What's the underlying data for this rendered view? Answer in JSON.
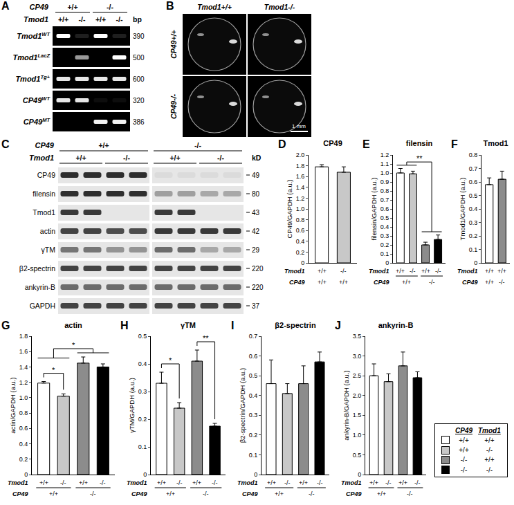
{
  "gel": {
    "letter": "A",
    "column_rows": [
      {
        "label": "CP49",
        "values": [
          "+/+",
          "-/-"
        ],
        "spans": [
          [
            0,
            1
          ],
          [
            2,
            3
          ]
        ]
      },
      {
        "label": "Tmod1",
        "values": [
          "+/+",
          "-/-",
          "+/+",
          "-/-"
        ]
      }
    ],
    "size_header": "bp",
    "rows": [
      {
        "gene": "Tmod1",
        "sup": "WT",
        "bp": 390,
        "bands": [
          1,
          0.12,
          1,
          0.12
        ]
      },
      {
        "gene": "Tmod1",
        "sup": "LacZ",
        "bp": 500,
        "bands": [
          0,
          0.6,
          0,
          1
        ]
      },
      {
        "gene": "Tmod1",
        "sup": "Tg+",
        "bp": 600,
        "bands": [
          0.9,
          0.9,
          0.9,
          0.9
        ]
      },
      {
        "gene": "CP49",
        "sup": "WT",
        "bp": 320,
        "bands": [
          0.9,
          0.9,
          0.05,
          0.05
        ]
      },
      {
        "gene": "CP49",
        "sup": "MT",
        "bp": 386,
        "bands": [
          0,
          0,
          0.95,
          0.95
        ]
      }
    ]
  },
  "photos": {
    "letter": "B",
    "columns": [
      "Tmod1+/+",
      "Tmod1-/-"
    ],
    "rows": [
      "CP49+/+",
      "CP49-/-"
    ],
    "scale_bar": "1 mm"
  },
  "blot": {
    "letter": "C",
    "column_rows": [
      {
        "label": "CP49",
        "values": [
          "+/+",
          "-/-"
        ],
        "spans": [
          [
            0,
            3
          ],
          [
            4,
            7
          ]
        ]
      },
      {
        "label": "Tmod1",
        "values": [
          "+/+",
          "-/-",
          "+/+",
          "-/-"
        ],
        "spans": [
          [
            0,
            1
          ],
          [
            2,
            3
          ],
          [
            4,
            5
          ],
          [
            6,
            7
          ]
        ]
      }
    ],
    "size_header": "kD",
    "rows": [
      {
        "label": "CP49",
        "kd": 49,
        "bands": [
          0.9,
          0.9,
          0.9,
          0.9,
          0.05,
          0.05,
          0.05,
          0.05
        ]
      },
      {
        "label": "filensin",
        "kd": 80,
        "bands": [
          0.9,
          0.9,
          0.9,
          0.9,
          0.35,
          0.35,
          0.3,
          0.3
        ]
      },
      {
        "label": "Tmod1",
        "kd": 43,
        "bands": [
          0.85,
          0.85,
          0,
          0,
          0.85,
          0.85,
          0,
          0
        ]
      },
      {
        "label": "actin",
        "kd": 42,
        "bands": [
          0.8,
          0.8,
          0.75,
          0.75,
          0.85,
          0.85,
          0.85,
          0.85
        ]
      },
      {
        "label": "γTM",
        "kd": 29,
        "bands": [
          0.55,
          0.55,
          0.4,
          0.4,
          0.6,
          0.6,
          0.3,
          0.3
        ]
      },
      {
        "label": "β2-spectrin",
        "kd": 220,
        "bands": [
          0.8,
          0.8,
          0.8,
          0.8,
          0.8,
          0.8,
          0.8,
          0.8
        ]
      },
      {
        "label": "ankyrin-B",
        "kd": 220,
        "bands": [
          0.6,
          0.6,
          0.6,
          0.6,
          0.6,
          0.6,
          0.6,
          0.6
        ]
      },
      {
        "label": "GAPDH",
        "kd": 37,
        "bands": [
          0.8,
          0.8,
          0.8,
          0.8,
          0.8,
          0.8,
          0.8,
          0.8
        ]
      }
    ]
  },
  "chart_data": [
    {
      "panel": "D",
      "type": "bar",
      "title": "CP49",
      "y_label": "CP49/GAPDH (a.u.)",
      "grid": false,
      "values": [
        1.78,
        1.68
      ],
      "errors": [
        0.04,
        0.1
      ],
      "colors": [
        "#ffffff",
        "#c8c8c8"
      ],
      "x_rows": [
        {
          "label": "Tmod1",
          "values": [
            "+/+",
            "-/-"
          ]
        },
        {
          "label": "CP49",
          "values": [
            "+/+",
            "+/+"
          ]
        }
      ],
      "ylim": [
        0,
        2
      ],
      "yticks": [
        0,
        0.2,
        0.4,
        0.6,
        0.8,
        {
          "value": 1,
          "label": "1.0"
        },
        1.2,
        1.4,
        1.6,
        1.8,
        {
          "value": 2,
          "label": "2.0"
        }
      ],
      "significance": []
    },
    {
      "panel": "E",
      "type": "bar",
      "title": "filensin",
      "y_label": "filensin/GAPDH (a.u.)",
      "grid": false,
      "values": [
        1.0,
        0.99,
        0.2,
        0.26
      ],
      "errors": [
        0.05,
        0.03,
        0.03,
        0.05
      ],
      "colors": [
        "#ffffff",
        "#c8c8c8",
        "#8c8c8c",
        "#000000"
      ],
      "x_rows": [
        {
          "label": "Tmod1",
          "values": [
            "+/+",
            "-/-",
            "+/+",
            "-/-"
          ]
        },
        {
          "label": "CP49",
          "values": [
            "+/+",
            "-/-"
          ],
          "spans": [
            [
              0,
              1
            ],
            [
              2,
              3
            ]
          ]
        }
      ],
      "ylim": [
        0,
        1.2
      ],
      "yticks": [
        0,
        0.1,
        0.2,
        0.3,
        0.4,
        0.5,
        0.6,
        0.7,
        0.8,
        0.9,
        {
          "value": 1,
          "label": "1.0"
        },
        1.1,
        1.2
      ],
      "significance": [
        {
          "a": [
            0,
            1
          ],
          "b": [
            2,
            3
          ],
          "label": "**"
        }
      ]
    },
    {
      "panel": "F",
      "type": "bar",
      "title": "Tmod1",
      "y_label": "Tmod1/GAPDH (a.u.)",
      "grid": false,
      "values": [
        0.58,
        0.62
      ],
      "errors": [
        0.05,
        0.06
      ],
      "colors": [
        "#ffffff",
        "#8c8c8c"
      ],
      "x_rows": [
        {
          "label": "Tmod1",
          "values": [
            "+/+",
            "+/+"
          ]
        },
        {
          "label": "CP49",
          "values": [
            "+/+",
            "-/-"
          ]
        }
      ],
      "ylim": [
        0,
        0.8
      ],
      "yticks": [
        0,
        0.1,
        0.2,
        0.3,
        0.4,
        0.5,
        0.6,
        0.7,
        0.8
      ],
      "significance": []
    },
    {
      "panel": "G",
      "type": "bar",
      "title": "actin",
      "y_label": "actin/GAPDH (a.u.)",
      "grid": false,
      "values": [
        1.19,
        1.02,
        1.45,
        1.4
      ],
      "errors": [
        0.02,
        0.03,
        0.08,
        0.04
      ],
      "colors": [
        "#ffffff",
        "#c8c8c8",
        "#8c8c8c",
        "#000000"
      ],
      "x_rows": [
        {
          "label": "Tmod1",
          "values": [
            "+/+",
            "-/-",
            "+/+",
            "-/-"
          ]
        },
        {
          "label": "CP49",
          "values": [
            "+/+",
            "-/-"
          ],
          "spans": [
            [
              0,
              1
            ],
            [
              2,
              3
            ]
          ]
        }
      ],
      "ylim": [
        0,
        1.8
      ],
      "yticks": [
        0,
        0.2,
        0.4,
        0.6,
        0.8,
        {
          "value": 1,
          "label": "1.0"
        },
        1.2,
        1.4,
        1.6,
        1.8
      ],
      "significance": [
        {
          "a": [
            0
          ],
          "b": [
            1
          ],
          "label": "*"
        },
        {
          "a": [
            0,
            1
          ],
          "b": [
            2,
            3
          ],
          "label": "*"
        }
      ]
    },
    {
      "panel": "H",
      "type": "bar",
      "title": "γTM",
      "y_label": "γTM/GAPDH (a.u.)",
      "grid": false,
      "values": [
        0.33,
        0.24,
        0.41,
        0.175
      ],
      "errors": [
        0.04,
        0.02,
        0.04,
        0.01
      ],
      "colors": [
        "#ffffff",
        "#c8c8c8",
        "#8c8c8c",
        "#000000"
      ],
      "x_rows": [
        {
          "label": "Tmod1",
          "values": [
            "+/+",
            "-/-",
            "+/+",
            "-/-"
          ]
        },
        {
          "label": "CP49",
          "values": [
            "+/+",
            "-/-"
          ],
          "spans": [
            [
              0,
              1
            ],
            [
              2,
              3
            ]
          ]
        }
      ],
      "ylim": [
        0,
        0.5
      ],
      "yticks": [
        0,
        0.1,
        0.2,
        0.3,
        0.4,
        0.5
      ],
      "significance": [
        {
          "a": [
            0
          ],
          "b": [
            1
          ],
          "label": "*"
        },
        {
          "a": [
            2
          ],
          "b": [
            3
          ],
          "label": "**"
        }
      ]
    },
    {
      "panel": "I",
      "type": "bar",
      "title": "β2-spectrin",
      "y_label": "β2-spectrin/GAPDH (a.u.)",
      "grid": false,
      "values": [
        0.46,
        0.41,
        0.46,
        0.57
      ],
      "errors": [
        0.12,
        0.05,
        0.09,
        0.05
      ],
      "colors": [
        "#ffffff",
        "#c8c8c8",
        "#8c8c8c",
        "#000000"
      ],
      "x_rows": [
        {
          "label": "Tmod1",
          "values": [
            "+/+",
            "-/-",
            "+/+",
            "-/-"
          ]
        },
        {
          "label": "CP49",
          "values": [
            "+/+",
            "-/-"
          ],
          "spans": [
            [
              0,
              1
            ],
            [
              2,
              3
            ]
          ]
        }
      ],
      "ylim": [
        0,
        0.7
      ],
      "yticks": [
        0,
        0.1,
        0.2,
        0.3,
        0.4,
        0.5,
        0.6,
        0.7
      ],
      "significance": []
    },
    {
      "panel": "J",
      "type": "bar",
      "title": "ankyrin-B",
      "y_label": "ankyrin-B/GAPDH (a.u.)",
      "grid": false,
      "values": [
        2.5,
        2.35,
        2.75,
        2.45
      ],
      "errors": [
        0.3,
        0.2,
        0.35,
        0.15
      ],
      "colors": [
        "#ffffff",
        "#c8c8c8",
        "#8c8c8c",
        "#000000"
      ],
      "x_rows": [
        {
          "label": "Tmod1",
          "values": [
            "+/+",
            "-/-",
            "+/+",
            "-/-"
          ]
        },
        {
          "label": "CP49",
          "values": [
            "+/+",
            "-/-"
          ],
          "spans": [
            [
              0,
              1
            ],
            [
              2,
              3
            ]
          ]
        }
      ],
      "ylim": [
        0,
        3.5
      ],
      "yticks": [
        0,
        0.5,
        {
          "value": 1,
          "label": "1.0"
        },
        1.5,
        {
          "value": 2,
          "label": "2.0"
        },
        2.5,
        {
          "value": 3,
          "label": "3.0"
        },
        3.5
      ],
      "significance": []
    }
  ],
  "key": {
    "headers": [
      "CP49",
      "Tmod1"
    ],
    "rows": [
      {
        "color": "#ffffff",
        "values": [
          "+/+",
          "+/+"
        ]
      },
      {
        "color": "#c8c8c8",
        "values": [
          "+/+",
          "-/-"
        ]
      },
      {
        "color": "#8c8c8c",
        "values": [
          "-/-",
          "+/+"
        ]
      },
      {
        "color": "#000000",
        "values": [
          "-/-",
          "-/-"
        ]
      }
    ]
  }
}
